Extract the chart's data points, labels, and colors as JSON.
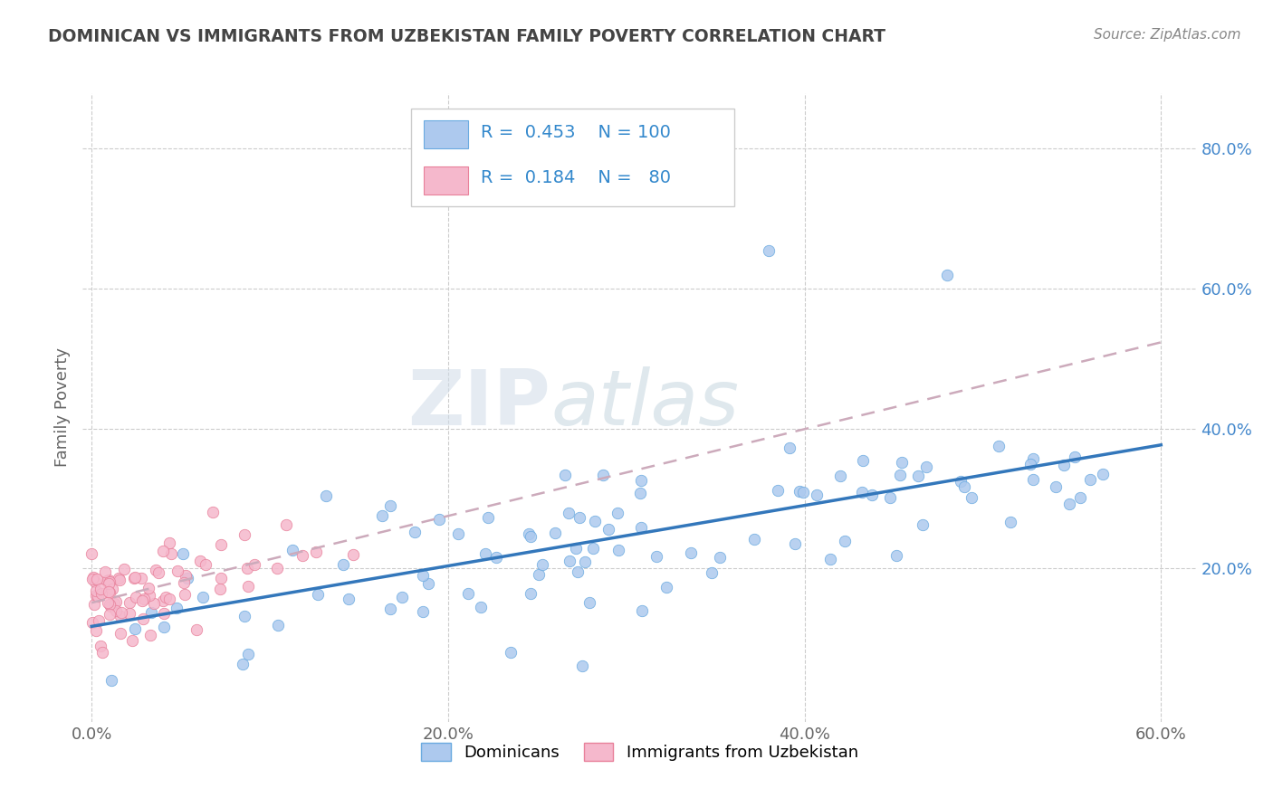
{
  "title": "DOMINICAN VS IMMIGRANTS FROM UZBEKISTAN FAMILY POVERTY CORRELATION CHART",
  "source": "Source: ZipAtlas.com",
  "ylabel": "Family Poverty",
  "xlim": [
    -0.005,
    0.62
  ],
  "ylim": [
    -0.02,
    0.88
  ],
  "xtick_vals": [
    0.0,
    0.2,
    0.4,
    0.6
  ],
  "xtick_labels": [
    "0.0%",
    "20.0%",
    "40.0%",
    "60.0%"
  ],
  "ytick_vals": [
    0.2,
    0.4,
    0.6,
    0.8
  ],
  "ytick_labels": [
    "20.0%",
    "40.0%",
    "60.0%",
    "80.0%"
  ],
  "dominican_color": "#adc9ee",
  "dominican_edge": "#6aaae0",
  "uzbek_color": "#f5b8cc",
  "uzbek_edge": "#e8809a",
  "reg_dominican_color": "#3377bb",
  "reg_uzbek_color": "#ccaabb",
  "R_dominican": 0.453,
  "N_dominican": 100,
  "R_uzbek": 0.184,
  "N_uzbek": 80,
  "legend_labels": [
    "Dominicans",
    "Immigrants from Uzbekistan"
  ],
  "background_color": "#ffffff",
  "grid_color": "#cccccc",
  "title_color": "#444444",
  "watermark_zip": "ZIP",
  "watermark_atlas": "atlas",
  "marker_size": 80
}
